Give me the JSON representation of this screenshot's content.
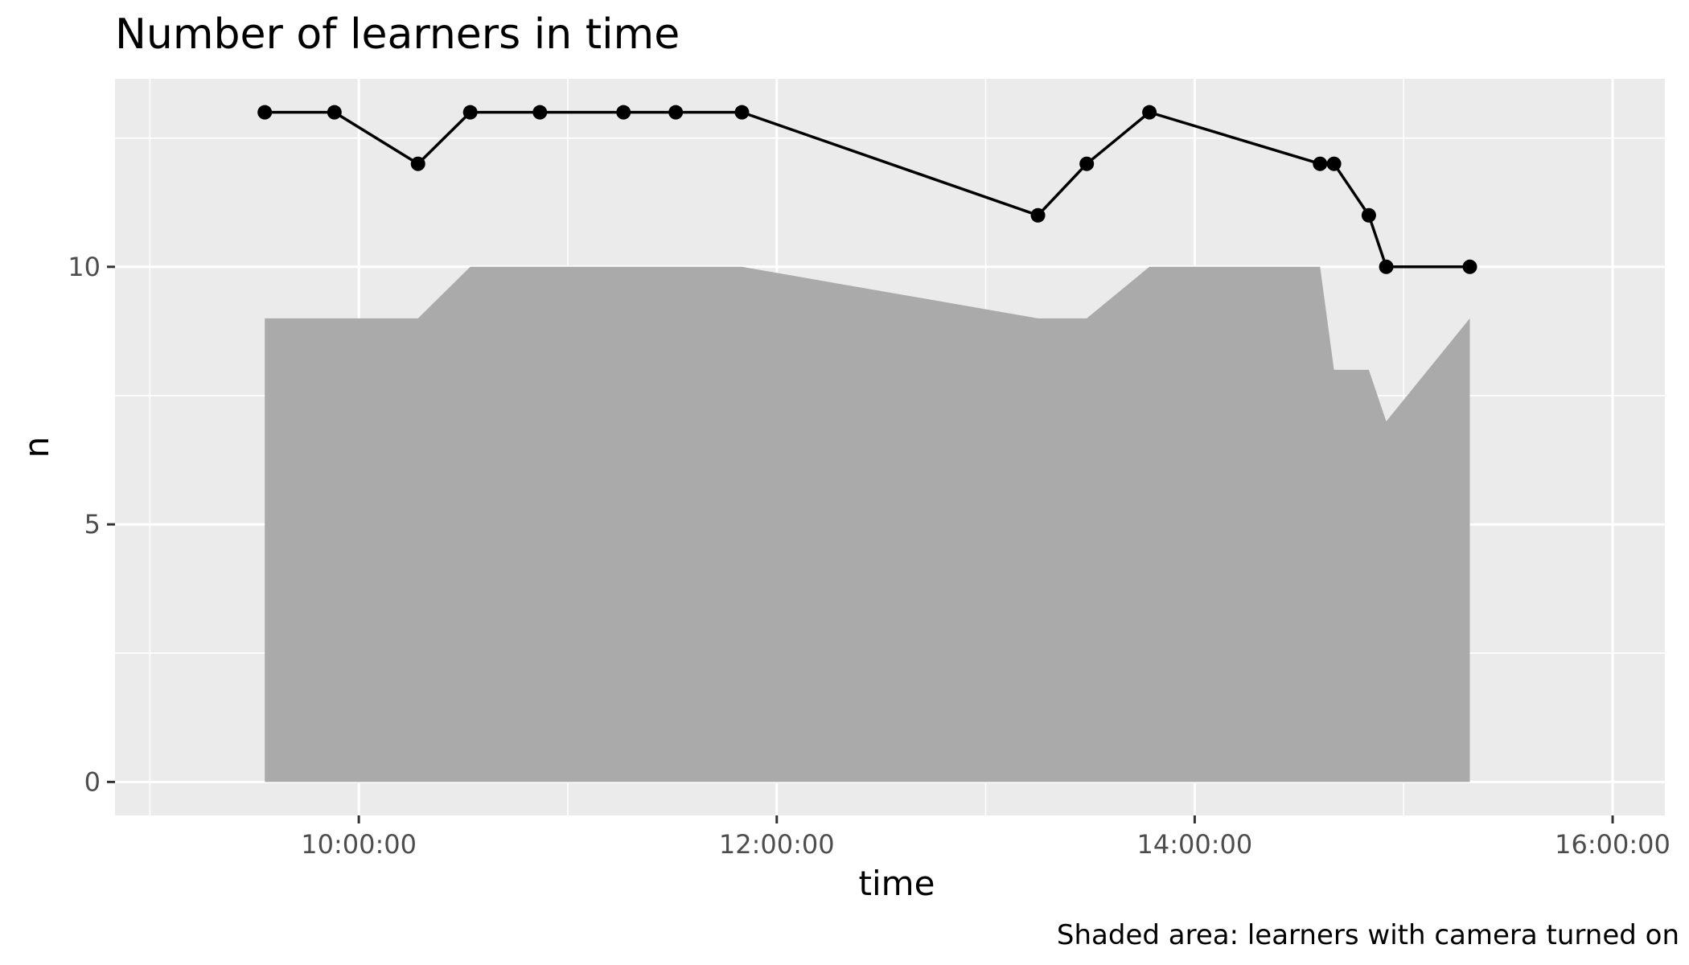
{
  "chart_data": {
    "type": "line",
    "title": "Number of learners in time",
    "xlabel": "time",
    "ylabel": "n",
    "caption": "Shaded area: learners with camera turned on",
    "xlim": [
      "08:50:00",
      "16:15:00"
    ],
    "ylim": [
      -0.65,
      13.65
    ],
    "x_ticks": [
      "10:00:00",
      "12:00:00",
      "14:00:00",
      "16:00:00"
    ],
    "y_ticks": [
      0,
      5,
      10
    ],
    "grid": true,
    "series": [
      {
        "kind": "line-points",
        "x": [
          "09:33:00",
          "09:53:00",
          "10:17:00",
          "10:32:00",
          "10:52:00",
          "11:16:00",
          "11:31:00",
          "11:50:00",
          "13:15:00",
          "13:29:00",
          "13:47:00",
          "14:36:00",
          "14:40:00",
          "14:50:00",
          "14:55:00",
          "15:19:00"
        ],
        "y": [
          13,
          13,
          12,
          13,
          13,
          13,
          13,
          13,
          11,
          12,
          13,
          12,
          12,
          11,
          10,
          10
        ]
      },
      {
        "kind": "area",
        "x": [
          "09:33:00",
          "09:53:00",
          "10:17:00",
          "10:32:00",
          "10:52:00",
          "11:16:00",
          "11:31:00",
          "11:50:00",
          "13:15:00",
          "13:29:00",
          "13:47:00",
          "14:36:00",
          "14:40:00",
          "14:50:00",
          "14:55:00",
          "15:19:00"
        ],
        "y": [
          9,
          9,
          9,
          10,
          10,
          10,
          10,
          10,
          9,
          9,
          10,
          10,
          8,
          8,
          7,
          9
        ]
      }
    ],
    "colors": {
      "panel": "#ebebeb",
      "grid": "#ffffff",
      "area": "#aaaaaa",
      "line": "#000000"
    }
  }
}
